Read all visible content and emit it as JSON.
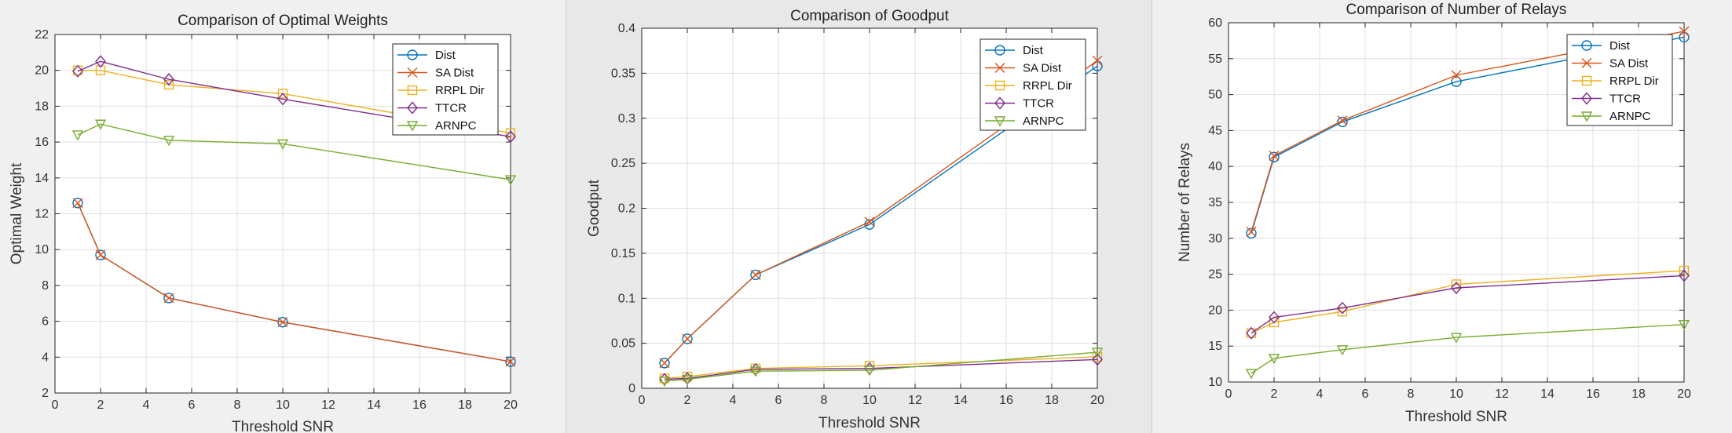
{
  "colors": {
    "Dist": "#0072BD",
    "SA Dist": "#D95319",
    "RRPL Dir": "#EDB120",
    "TTCR": "#7E2F8E",
    "ARNPC": "#77AC30"
  },
  "chart_data": [
    {
      "type": "line",
      "title": "Comparison of Optimal Weights",
      "xlabel": "Threshold SNR",
      "ylabel": "Optimal Weight",
      "xlim": [
        0,
        20
      ],
      "ylim": [
        2,
        22
      ],
      "xticks": [
        0,
        2,
        4,
        6,
        8,
        10,
        12,
        14,
        16,
        18,
        20
      ],
      "yticks": [
        2,
        4,
        6,
        8,
        10,
        12,
        14,
        16,
        18,
        20,
        22
      ],
      "grid": true,
      "legend_position": "top-right",
      "x": [
        1,
        2,
        5,
        10,
        20
      ],
      "series": [
        {
          "name": "Dist",
          "marker": "circle",
          "values": [
            12.6,
            9.7,
            7.3,
            5.95,
            3.75
          ]
        },
        {
          "name": "SA Dist",
          "marker": "x",
          "values": [
            12.6,
            9.7,
            7.3,
            5.95,
            3.75
          ]
        },
        {
          "name": "RRPL Dir",
          "marker": "square",
          "values": [
            20.0,
            20.0,
            19.2,
            18.7,
            16.5
          ]
        },
        {
          "name": "TTCR",
          "marker": "diamond",
          "values": [
            19.95,
            20.5,
            19.5,
            18.4,
            16.3
          ]
        },
        {
          "name": "ARNPC",
          "marker": "triangle-down",
          "values": [
            16.4,
            17.0,
            16.1,
            15.9,
            13.9
          ]
        }
      ]
    },
    {
      "type": "line",
      "title": "Comparison of Goodput",
      "xlabel": "Threshold SNR",
      "ylabel": "Goodput",
      "xlim": [
        0,
        20
      ],
      "ylim": [
        0,
        0.4
      ],
      "xticks": [
        0,
        2,
        4,
        6,
        8,
        10,
        12,
        14,
        16,
        18,
        20
      ],
      "yticks": [
        0,
        0.05,
        0.1,
        0.15,
        0.2,
        0.25,
        0.3,
        0.35,
        0.4
      ],
      "grid": true,
      "legend_position": "top-right",
      "x": [
        1,
        2,
        5,
        10,
        20
      ],
      "series": [
        {
          "name": "Dist",
          "marker": "circle",
          "values": [
            0.028,
            0.055,
            0.126,
            0.182,
            0.358
          ]
        },
        {
          "name": "SA Dist",
          "marker": "x",
          "values": [
            0.028,
            0.055,
            0.126,
            0.185,
            0.364
          ]
        },
        {
          "name": "RRPL Dir",
          "marker": "square",
          "values": [
            0.011,
            0.013,
            0.022,
            0.025,
            0.035
          ]
        },
        {
          "name": "TTCR",
          "marker": "diamond",
          "values": [
            0.01,
            0.011,
            0.021,
            0.022,
            0.032
          ]
        },
        {
          "name": "ARNPC",
          "marker": "triangle-down",
          "values": [
            0.008,
            0.01,
            0.019,
            0.02,
            0.04
          ]
        }
      ]
    },
    {
      "type": "line",
      "title": "Comparison of Number of Relays",
      "xlabel": "Threshold SNR",
      "ylabel": "Number of Relays",
      "xlim": [
        0,
        20
      ],
      "ylim": [
        10,
        60
      ],
      "xticks": [
        0,
        2,
        4,
        6,
        8,
        10,
        12,
        14,
        16,
        18,
        20
      ],
      "yticks": [
        10,
        15,
        20,
        25,
        30,
        35,
        40,
        45,
        50,
        55,
        60
      ],
      "grid": true,
      "legend_position": "top-right",
      "x": [
        1,
        2,
        5,
        10,
        20
      ],
      "series": [
        {
          "name": "Dist",
          "marker": "circle",
          "values": [
            30.7,
            41.3,
            46.2,
            51.8,
            58.0
          ]
        },
        {
          "name": "SA Dist",
          "marker": "x",
          "values": [
            30.9,
            41.5,
            46.4,
            52.7,
            58.8
          ]
        },
        {
          "name": "RRPL Dir",
          "marker": "square",
          "values": [
            16.8,
            18.3,
            19.8,
            23.6,
            25.5
          ]
        },
        {
          "name": "TTCR",
          "marker": "diamond",
          "values": [
            16.8,
            19.0,
            20.3,
            23.1,
            24.8
          ]
        },
        {
          "name": "ARNPC",
          "marker": "triangle-down",
          "values": [
            11.2,
            13.3,
            14.5,
            16.2,
            18.0
          ]
        }
      ]
    }
  ]
}
